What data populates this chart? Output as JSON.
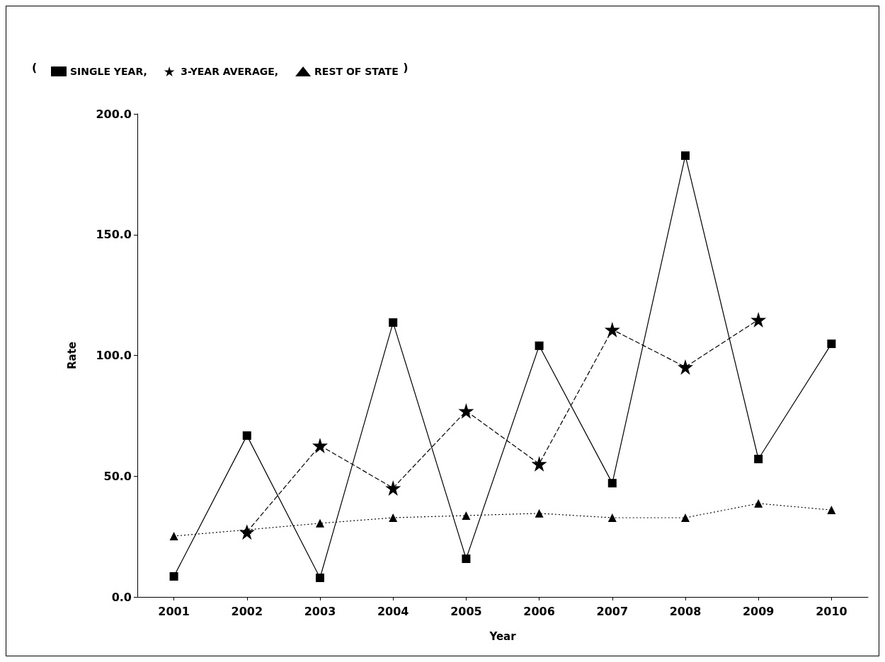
{
  "chart_data": {
    "type": "line",
    "xlabel": "Year",
    "ylabel": "Rate",
    "categories": [
      "2001",
      "2002",
      "2003",
      "2004",
      "2005",
      "2006",
      "2007",
      "2008",
      "2009",
      "2010"
    ],
    "series": [
      {
        "name": "SINGLE YEAR,",
        "color": "#000000",
        "marker": "square",
        "line_style": "solid",
        "values": [
          8.5,
          66.8,
          7.9,
          113.6,
          15.8,
          104.0,
          47.1,
          182.7,
          57.1,
          104.8
        ]
      },
      {
        "name": "3-YEAR AVERAGE,",
        "color": "#000000",
        "marker": "star",
        "line_style": "dashed",
        "values": [
          null,
          26.9,
          62.7,
          45.1,
          77.0,
          55.1,
          110.7,
          95.2,
          114.8,
          null
        ]
      },
      {
        "name": "REST OF STATE",
        "color": "#000000",
        "marker": "triangle",
        "line_style": "dotted",
        "values": [
          25.2,
          27.8,
          30.5,
          32.8,
          33.7,
          34.6,
          32.8,
          32.8,
          38.7,
          36.0
        ]
      }
    ],
    "ylim": [
      0,
      200
    ],
    "yticks": [
      {
        "value": 0,
        "label": "0.0"
      },
      {
        "value": 50,
        "label": "50.0"
      },
      {
        "value": 100,
        "label": "100.0"
      },
      {
        "value": 150,
        "label": "150.0"
      },
      {
        "value": 200,
        "label": "200.0"
      }
    ],
    "grid": false,
    "legend": "top left",
    "annotations": [
      "(",
      ")"
    ]
  }
}
